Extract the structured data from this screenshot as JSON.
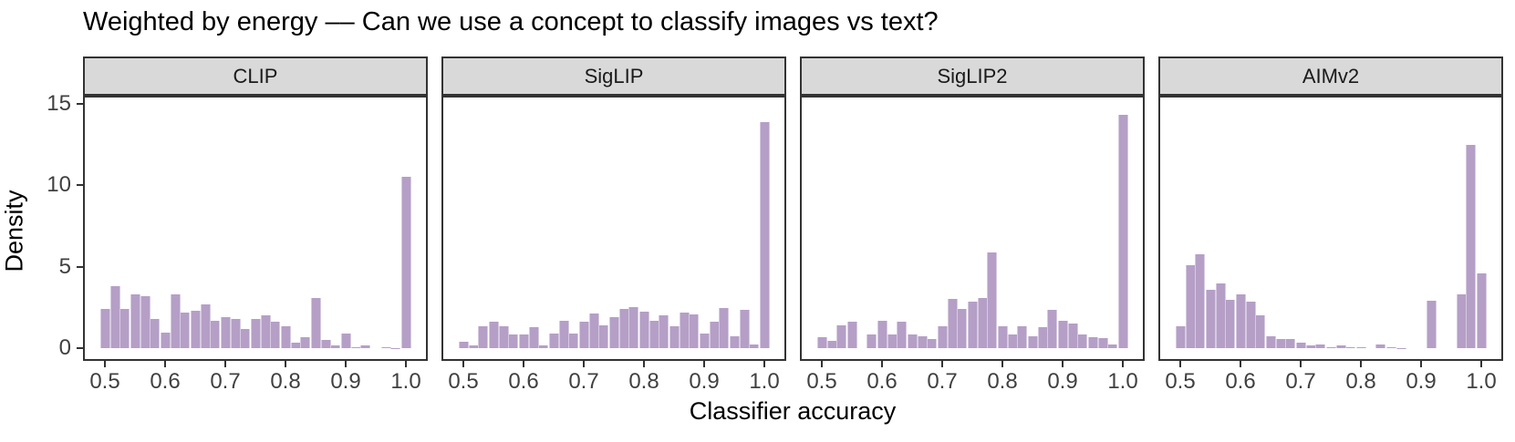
{
  "title": "Weighted by energy –– Can we use a concept to classify images vs text?",
  "axes": {
    "x_label": "Classifier accuracy",
    "y_label": "Density",
    "x_ticks": [
      "0.5",
      "0.6",
      "0.7",
      "0.8",
      "0.9",
      "1.0"
    ],
    "y_ticks": [
      "0",
      "5",
      "10",
      "15"
    ]
  },
  "colors": {
    "bar_fill": "#b59fc6",
    "strip_bg": "#d9d9d9",
    "panel_border": "#333333",
    "tick_label": "#404040"
  },
  "chart_data": {
    "type": "bar",
    "subtype": "faceted-histogram",
    "title": "Weighted by energy –– Can we use a concept to classify images vs text?",
    "xlabel": "Classifier accuracy",
    "ylabel": "Density",
    "xlim": [
      0.47,
      1.03
    ],
    "ylim": [
      0,
      15.5
    ],
    "yticks": [
      0,
      5,
      10,
      15
    ],
    "xticks": [
      0.5,
      0.6,
      0.7,
      0.8,
      0.9,
      1.0
    ],
    "grid": "off",
    "legend": "none",
    "bin_width": 0.0167,
    "bin_centers": [
      0.5,
      0.5167,
      0.5333,
      0.55,
      0.5667,
      0.5833,
      0.6,
      0.6167,
      0.6333,
      0.65,
      0.6667,
      0.6833,
      0.7,
      0.7167,
      0.7333,
      0.75,
      0.7667,
      0.7833,
      0.8,
      0.8167,
      0.8333,
      0.85,
      0.8667,
      0.8833,
      0.9,
      0.9167,
      0.9333,
      0.95,
      0.9667,
      0.9833,
      1.0
    ],
    "facets": [
      {
        "name": "CLIP",
        "values": [
          2.4,
          3.8,
          2.4,
          3.3,
          3.2,
          1.8,
          0.95,
          3.3,
          2.2,
          2.3,
          2.7,
          1.7,
          1.9,
          1.8,
          1.2,
          1.8,
          2.0,
          1.6,
          1.35,
          0.35,
          0.7,
          3.1,
          0.5,
          0.15,
          0.9,
          0.05,
          0.15,
          0,
          0.05,
          0.02,
          10.5
        ]
      },
      {
        "name": "SigLIP",
        "values": [
          0.4,
          0.15,
          1.35,
          1.6,
          1.35,
          0.85,
          0.85,
          1.3,
          0.15,
          0.9,
          1.7,
          0.9,
          1.6,
          2.15,
          1.4,
          1.9,
          2.4,
          2.5,
          2.25,
          1.7,
          2.0,
          1.35,
          2.2,
          2.05,
          0.9,
          1.65,
          2.45,
          0.75,
          2.35,
          0.25,
          13.9
        ]
      },
      {
        "name": "SigLIP2",
        "values": [
          0.65,
          0.45,
          1.4,
          1.6,
          0,
          0.85,
          1.7,
          0.85,
          1.65,
          0.85,
          0.75,
          0.55,
          1.35,
          3.0,
          2.4,
          2.85,
          3.1,
          5.85,
          1.35,
          0.85,
          1.35,
          0.75,
          1.3,
          2.35,
          1.7,
          1.5,
          0.85,
          0.7,
          0.6,
          0.2,
          14.3
        ]
      },
      {
        "name": "AIMv2",
        "values": [
          1.35,
          5.1,
          5.75,
          3.6,
          4.0,
          2.95,
          3.3,
          2.85,
          2.0,
          0.75,
          0.55,
          0.55,
          0.35,
          0.15,
          0.2,
          0.07,
          0.17,
          0.05,
          0.07,
          0,
          0.22,
          0.07,
          0.02,
          0,
          0,
          2.9,
          0,
          0,
          3.3,
          12.5,
          4.6
        ]
      }
    ]
  }
}
